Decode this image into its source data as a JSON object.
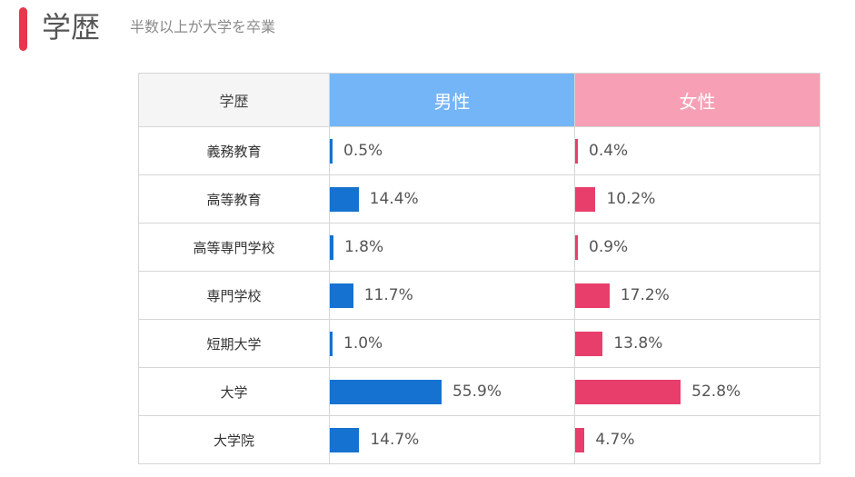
{
  "header": {
    "title": "学歴",
    "subtitle": "半数以上が大学を卒業",
    "accent_color": "#e8374a"
  },
  "chart_data": {
    "type": "bar",
    "title": "",
    "column_labels": {
      "category": "学歴",
      "male": "男性",
      "female": "女性"
    },
    "categories": [
      "義務教育",
      "高等教育",
      "高等専門学校",
      "専門学校",
      "短期大学",
      "大学",
      "大学院"
    ],
    "series": [
      {
        "name": "男性",
        "color": "#1672d0",
        "header_color": "#74b5f7",
        "values": [
          0.5,
          14.4,
          1.8,
          11.7,
          1.0,
          55.9,
          14.7
        ],
        "labels": [
          "0.5%",
          "14.4%",
          "1.8%",
          "11.7%",
          "1.0%",
          "55.9%",
          "14.7%"
        ]
      },
      {
        "name": "女性",
        "color": "#e83e6c",
        "header_color": "#f7a0b5",
        "values": [
          0.4,
          10.2,
          0.9,
          17.2,
          13.8,
          52.8,
          4.7
        ],
        "labels": [
          "0.4%",
          "10.2%",
          "0.9%",
          "17.2%",
          "13.8%",
          "52.8%",
          "4.7%"
        ]
      }
    ],
    "value_max": 100,
    "unit": "%"
  }
}
